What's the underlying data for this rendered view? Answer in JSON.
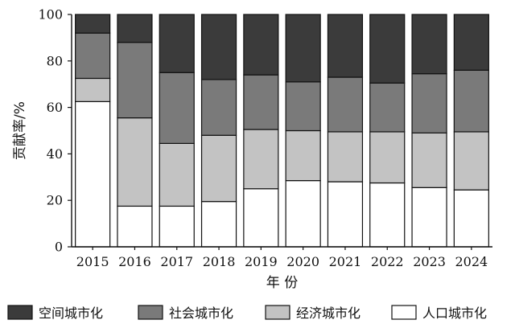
{
  "chart_data": {
    "type": "bar",
    "stacked": true,
    "title": "",
    "xlabel": "年 份",
    "ylabel": "贡献率/%",
    "ylim": [
      0,
      100
    ],
    "yticks": [
      0,
      20,
      40,
      60,
      80,
      100
    ],
    "grid": false,
    "legend_position": "bottom",
    "categories": [
      "2015",
      "2016",
      "2017",
      "2018",
      "2019",
      "2020",
      "2021",
      "2022",
      "2023",
      "2024"
    ],
    "series": [
      {
        "name": "人口城市化",
        "color": "#ffffff",
        "values": [
          62.5,
          17.5,
          17.5,
          19.5,
          25,
          28.5,
          28,
          27.5,
          25.5,
          24.5
        ]
      },
      {
        "name": "经济城市化",
        "color": "#c3c3c3",
        "values": [
          10,
          38,
          27,
          28.5,
          25.5,
          21.5,
          21.5,
          22,
          23.5,
          25
        ]
      },
      {
        "name": "社会城市化",
        "color": "#7a7a7a",
        "values": [
          19.5,
          32.5,
          30.5,
          24,
          23.5,
          21,
          23.5,
          21,
          25.5,
          26.5
        ]
      },
      {
        "name": "空间城市化",
        "color": "#3b3b3b",
        "values": [
          8,
          12,
          25,
          28,
          26,
          29,
          27,
          29.5,
          25.5,
          24
        ]
      }
    ],
    "legend_order": [
      3,
      2,
      1,
      0
    ]
  }
}
